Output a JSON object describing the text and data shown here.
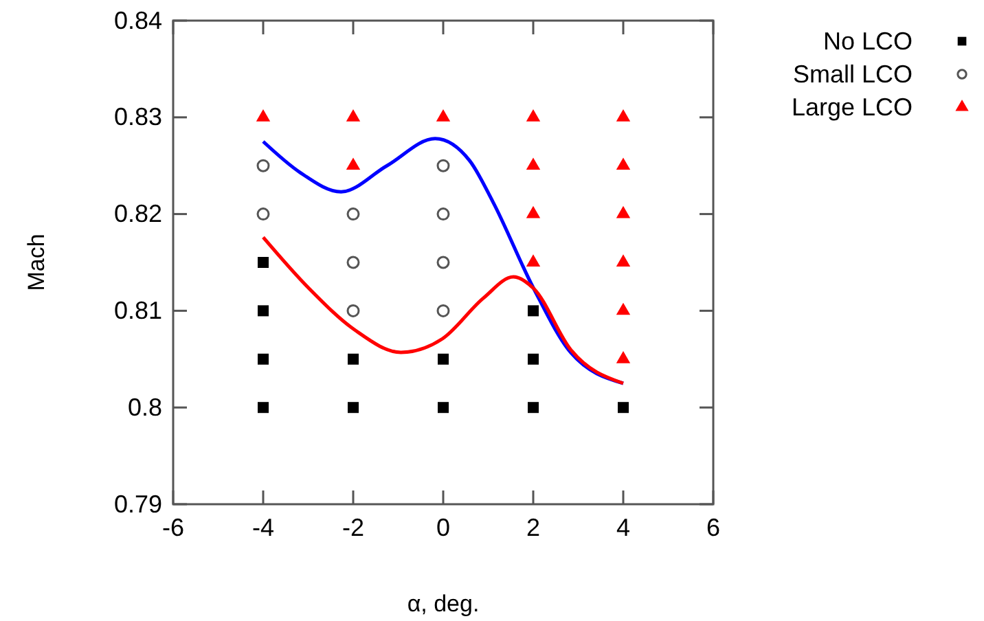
{
  "chart_data": {
    "type": "scatter",
    "xlabel": "α, deg.",
    "ylabel": "Mach",
    "xlim": [
      -6,
      6
    ],
    "xticks": [
      -6,
      -4,
      -2,
      0,
      2,
      4,
      6
    ],
    "ylim": [
      0.79,
      0.84
    ],
    "yticks": [
      0.79,
      0.8,
      0.81,
      0.82,
      0.83,
      0.84
    ],
    "grid": false,
    "legend": "top right",
    "series": [
      {
        "name": "No LCO",
        "color": "#000000",
        "marker": "square",
        "x": [
          -4,
          -4,
          -4,
          -4,
          -2,
          -2,
          0,
          0,
          2,
          2,
          2,
          4
        ],
        "values": [
          0.8,
          0.805,
          0.81,
          0.815,
          0.8,
          0.805,
          0.8,
          0.805,
          0.8,
          0.805,
          0.81,
          0.8
        ]
      },
      {
        "name": "Small LCO",
        "color": "#555555",
        "marker": "circle",
        "x": [
          -4,
          -4,
          -2,
          -2,
          -2,
          0,
          0,
          0,
          0
        ],
        "values": [
          0.82,
          0.825,
          0.81,
          0.815,
          0.82,
          0.81,
          0.815,
          0.82,
          0.825
        ]
      },
      {
        "name": "Large LCO",
        "color": "#ff0000",
        "marker": "triangle",
        "x": [
          -4,
          -2,
          -2,
          0,
          2,
          2,
          2,
          2,
          4,
          4,
          4,
          4,
          4,
          4
        ],
        "values": [
          0.83,
          0.825,
          0.83,
          0.83,
          0.815,
          0.82,
          0.825,
          0.83,
          0.805,
          0.81,
          0.815,
          0.82,
          0.825,
          0.83
        ]
      },
      {
        "type": "line",
        "color": "#0000ff",
        "marker": "none",
        "x": [
          -4,
          -3.18,
          -2.27,
          -1.25,
          -0.18,
          0.59,
          1.1,
          2.01,
          2.83,
          4
        ],
        "values": [
          0.8275,
          0.8243,
          0.8223,
          0.825,
          0.8278,
          0.8255,
          0.8213,
          0.8123,
          0.8057,
          0.8025
        ]
      },
      {
        "type": "line",
        "color": "#ff0000",
        "marker": "none",
        "x": [
          -4,
          -2.98,
          -1.96,
          -0.94,
          -0.02,
          0.89,
          1.56,
          2.01,
          2.83,
          4
        ],
        "values": [
          0.8176,
          0.8123,
          0.808,
          0.8057,
          0.8071,
          0.8113,
          0.8135,
          0.8123,
          0.806,
          0.8025
        ]
      }
    ]
  }
}
